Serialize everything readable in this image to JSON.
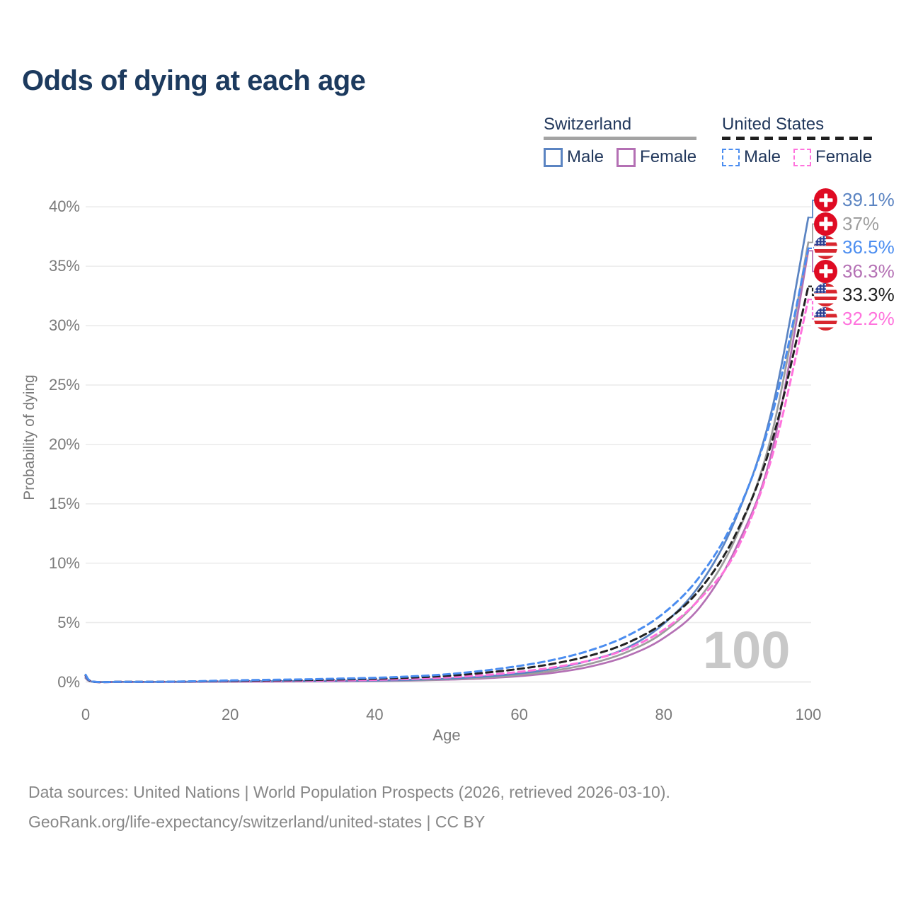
{
  "title": "Odds of dying at each age",
  "legend": {
    "groups": [
      {
        "label": "Switzerland",
        "line_style": "solid",
        "line_color": "#a3a3a3",
        "items": [
          {
            "id": "ch-male",
            "label": "Male",
            "color": "#5b84c2",
            "style": "solid"
          },
          {
            "id": "ch-female",
            "label": "Female",
            "color": "#b470b4",
            "style": "solid"
          }
        ]
      },
      {
        "label": "United States",
        "line_style": "dashed",
        "line_color": "#1f1f1f",
        "items": [
          {
            "id": "us-male",
            "label": "Male",
            "color": "#4b8df0",
            "style": "dashed"
          },
          {
            "id": "us-female",
            "label": "Female",
            "color": "#ff73dd",
            "style": "dashed"
          }
        ]
      }
    ]
  },
  "chart_data": {
    "type": "line",
    "title": "Odds of dying at each age",
    "xlabel": "Age",
    "ylabel": "Probability of dying",
    "xlim": [
      0,
      100
    ],
    "ylim": [
      0,
      40
    ],
    "x_ticks": [
      0,
      20,
      40,
      60,
      80,
      100
    ],
    "y_tick_values": [
      0,
      5,
      10,
      15,
      20,
      25,
      30,
      35,
      40
    ],
    "y_tick_labels": [
      "0%",
      "5%",
      "10%",
      "15%",
      "20%",
      "25%",
      "30%",
      "35%",
      "40%"
    ],
    "grid": "horizontal",
    "legend_position": "top-right",
    "age_cursor_watermark": "100",
    "x": [
      0,
      1,
      5,
      10,
      15,
      20,
      25,
      30,
      35,
      40,
      45,
      50,
      55,
      60,
      65,
      70,
      75,
      80,
      85,
      90,
      95,
      100
    ],
    "series": [
      {
        "id": "ch-female",
        "country": "Switzerland",
        "sex": "Female",
        "flag": "ch",
        "style": "solid",
        "color": "#b470b4",
        "label_color": "#b470b4",
        "end_label": "36.3%",
        "end_value": 36.3,
        "values": [
          0.31,
          0.02,
          0.01,
          0.01,
          0.01,
          0.02,
          0.03,
          0.04,
          0.05,
          0.08,
          0.12,
          0.19,
          0.3,
          0.49,
          0.8,
          1.32,
          2.2,
          3.7,
          6.3,
          11.3,
          19.5,
          36.3
        ]
      },
      {
        "id": "ch-both",
        "country": "Switzerland",
        "sex": "Both",
        "flag": "ch",
        "style": "solid",
        "color": "#9e9e9e",
        "label_color": "#9e9e9e",
        "end_label": "37%",
        "end_value": 37.0,
        "values": [
          0.34,
          0.02,
          0.01,
          0.01,
          0.02,
          0.04,
          0.05,
          0.06,
          0.07,
          0.1,
          0.15,
          0.23,
          0.37,
          0.6,
          0.97,
          1.57,
          2.55,
          4.2,
          7.1,
          12.2,
          21.0,
          37.0
        ]
      },
      {
        "id": "ch-male",
        "country": "Switzerland",
        "sex": "Male",
        "flag": "ch",
        "style": "solid",
        "color": "#5b84c2",
        "label_color": "#5b84c2",
        "end_label": "39.1%",
        "end_value": 39.1,
        "values": [
          0.38,
          0.02,
          0.01,
          0.01,
          0.02,
          0.05,
          0.06,
          0.07,
          0.09,
          0.12,
          0.18,
          0.28,
          0.45,
          0.72,
          1.15,
          1.85,
          2.9,
          4.9,
          8.2,
          13.8,
          23.0,
          39.1
        ]
      },
      {
        "id": "us-female",
        "country": "United States",
        "sex": "Female",
        "flag": "us",
        "style": "dashed",
        "color": "#ff73dd",
        "label_color": "#ff73dd",
        "end_label": "32.2%",
        "end_value": 32.2,
        "values": [
          0.5,
          0.03,
          0.01,
          0.01,
          0.03,
          0.06,
          0.08,
          0.1,
          0.13,
          0.18,
          0.26,
          0.38,
          0.57,
          0.85,
          1.25,
          1.85,
          2.8,
          4.4,
          7.0,
          11.0,
          19.0,
          32.2
        ]
      },
      {
        "id": "us-both",
        "country": "United States",
        "sex": "Both",
        "flag": "us",
        "style": "dashed",
        "color": "#222222",
        "label_color": "#222222",
        "end_label": "33.3%",
        "end_value": 33.3,
        "values": [
          0.55,
          0.03,
          0.02,
          0.02,
          0.04,
          0.09,
          0.13,
          0.16,
          0.21,
          0.27,
          0.37,
          0.52,
          0.76,
          1.1,
          1.57,
          2.25,
          3.3,
          5.0,
          7.8,
          12.5,
          20.3,
          33.3
        ]
      },
      {
        "id": "us-male",
        "country": "United States",
        "sex": "Male",
        "flag": "us",
        "style": "dashed",
        "color": "#4b8df0",
        "label_color": "#4b8df0",
        "end_label": "36.5%",
        "end_value": 36.5,
        "values": [
          0.6,
          0.04,
          0.02,
          0.02,
          0.06,
          0.13,
          0.18,
          0.22,
          0.28,
          0.35,
          0.47,
          0.65,
          0.95,
          1.35,
          1.9,
          2.7,
          3.9,
          5.8,
          8.9,
          14.0,
          22.5,
          36.5
        ]
      }
    ]
  },
  "footer": {
    "line1": "Data sources: United Nations | World Population Prospects (2026, retrieved 2026-03-10).",
    "line2": "GeoRank.org/life-expectancy/switzerland/united-states | CC BY"
  }
}
